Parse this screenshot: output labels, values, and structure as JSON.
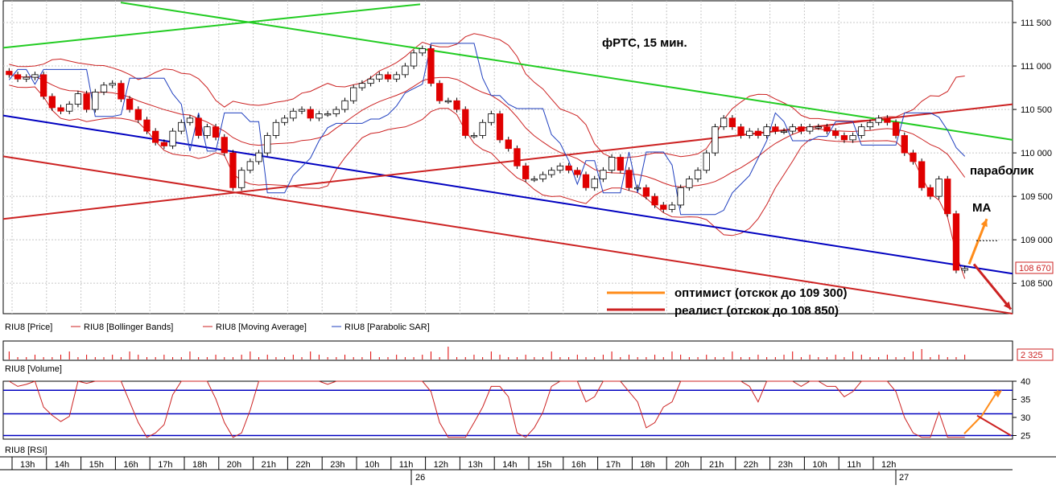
{
  "colors": {
    "up_candle": "#ffffff",
    "down_candle": "#e00000",
    "bollinger": "#cc2222",
    "moving_average": "#cc2222",
    "parabolic_sar": "#1f3fbf",
    "green_trend": "#22cc22",
    "blue_trend": "#0000c0",
    "red_trend": "#cc2222",
    "arrow_optimist": "#ff8c1a",
    "arrow_realist": "#cc2222",
    "grid": "#c8c8c8",
    "price_marker": "#cc2222"
  },
  "price_panel": {
    "title": "фРТС, 15 мин.",
    "y_ticks": [
      "111 500",
      "111 000",
      "110 500",
      "110 000",
      "109 500",
      "109 000",
      "108 500"
    ],
    "current_price": "108 670",
    "legend": [
      "RIU8 [Price]",
      "RIU8 [Bollinger Bands]",
      "RIU8 [Moving Average]",
      "RIU8 [Parabolic SAR]"
    ],
    "annotations": {
      "parabolic": "параболик",
      "ma": "MA",
      "optimist": "оптимист (отскок до 109 300)",
      "realist": "реалист  (отскок до 108 850)"
    }
  },
  "volume_panel": {
    "label": "RIU8 [Volume]",
    "current_value": "2 325"
  },
  "rsi_panel": {
    "label": "RIU8 [RSI]",
    "y_ticks": [
      "40",
      "35",
      "30",
      "25"
    ]
  },
  "time_axis": {
    "hours": [
      "13h",
      "14h",
      "15h",
      "16h",
      "17h",
      "18h",
      "20h",
      "21h",
      "22h",
      "23h",
      "10h",
      "11h",
      "12h",
      "13h",
      "14h",
      "15h",
      "16h",
      "17h",
      "18h",
      "20h",
      "21h",
      "22h",
      "23h",
      "10h",
      "11h",
      "12h"
    ],
    "days": [
      "26",
      "27"
    ]
  },
  "chart_data": {
    "type": "candlestick",
    "title": "фРТС, 15 мин.",
    "series": [
      "RIU8 [Price]",
      "RIU8 [Bollinger Bands]",
      "RIU8 [Moving Average]",
      "RIU8 [Parabolic SAR]",
      "RIU8 [Volume]",
      "RIU8 [RSI]"
    ],
    "price_ylim": [
      108150,
      111750
    ],
    "rsi_ylim": [
      24,
      40
    ],
    "candles_close": [
      110900,
      110850,
      110870,
      110900,
      110650,
      110520,
      110480,
      110560,
      110680,
      110500,
      110700,
      110780,
      110800,
      110620,
      110500,
      110380,
      110250,
      110120,
      110080,
      110250,
      110350,
      110400,
      110200,
      110300,
      110180,
      110000,
      109600,
      109800,
      109900,
      110000,
      110200,
      110350,
      110400,
      110480,
      110500,
      110400,
      110450,
      110450,
      110500,
      110600,
      110750,
      110800,
      110850,
      110900,
      110850,
      110900,
      111000,
      111150,
      111200,
      110800,
      110600,
      110600,
      110500,
      110200,
      110200,
      110350,
      110450,
      110150,
      110050,
      109850,
      109700,
      109700,
      109750,
      109800,
      109850,
      109800,
      109750,
      109600,
      109700,
      109800,
      109950,
      109800,
      109600,
      109600,
      109500,
      109400,
      109350,
      109400,
      109600,
      109700,
      109800,
      110000,
      110300,
      110400,
      110300,
      110200,
      110250,
      110200,
      110300,
      110250,
      110250,
      110300,
      110250,
      110300,
      110300,
      110250,
      110200,
      110150,
      110200,
      110300,
      110350,
      110400,
      110350,
      110200,
      110000,
      109900,
      109600,
      109500,
      109700,
      109300,
      108650,
      108670
    ],
    "rsi_levels": [
      37.5,
      31,
      25
    ]
  }
}
